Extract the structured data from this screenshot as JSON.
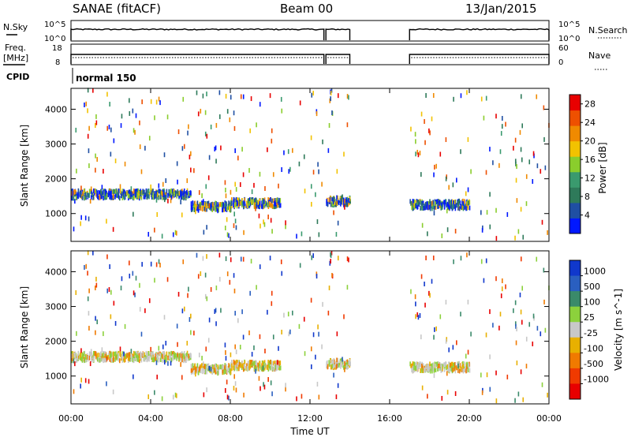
{
  "header": {
    "station": "SANAE (fitACF)",
    "beam": "Beam 00",
    "date": "13/Jan/2015"
  },
  "noise_panel": {
    "left_label": "N.Sky",
    "right_label": "N.Search",
    "left_ticks": [
      "10^5",
      "10^0"
    ],
    "right_ticks": [
      "10^5",
      "10^0"
    ]
  },
  "freq_panel": {
    "left_label_1": "Freq.",
    "left_label_2": "[MHz]",
    "left_ticks": [
      "18",
      "8"
    ],
    "right_ticks": [
      "60",
      "0"
    ],
    "right_label": "Nave"
  },
  "cpid": {
    "label": "CPID",
    "value": "normal 150"
  },
  "colors": {
    "power_scale": [
      "#0018ff",
      "#1f4fa3",
      "#2e7a5a",
      "#3a9a6e",
      "#8acd2c",
      "#f2c200",
      "#f08a00",
      "#ee5000",
      "#e80000"
    ],
    "velocity_scale": [
      "#1038cc",
      "#2a5fc0",
      "#3a8a6a",
      "#8cd13c",
      "#c8c8c8",
      "#e8b000",
      "#f07a00",
      "#f03a00",
      "#e80000"
    ]
  },
  "chart_data": [
    {
      "type": "heatmap",
      "title": "",
      "xlabel": "Time UT",
      "ylabel": "Slant Range [km]",
      "x_ticks": [
        "00:00",
        "04:00",
        "08:00",
        "12:00",
        "16:00",
        "20:00",
        "00:00"
      ],
      "y_ticks": [
        "1000",
        "2000",
        "3000",
        "4000"
      ],
      "xlim_hours": [
        0,
        24
      ],
      "ylim_km": [
        200,
        4600
      ],
      "colorbar": {
        "label": "Power [dB]",
        "ticks": [
          "4",
          "8",
          "12",
          "16",
          "20",
          "24",
          "28"
        ],
        "range": [
          0,
          30
        ]
      },
      "features": [
        {
          "t_start": 0.0,
          "t_end": 4.0,
          "range_km": 1550
        },
        {
          "t_start": 4.0,
          "t_end": 6.0,
          "range_km": 1550
        },
        {
          "t_start": 6.0,
          "t_end": 8.0,
          "range_km": 1200
        },
        {
          "t_start": 8.0,
          "t_end": 10.5,
          "range_km": 1300
        },
        {
          "t_start": 12.8,
          "t_end": 14.0,
          "range_km": 1350
        },
        {
          "t_start": 17.0,
          "t_end": 20.0,
          "range_km": 1250
        }
      ]
    },
    {
      "type": "heatmap",
      "title": "",
      "xlabel": "Time UT",
      "ylabel": "Slant Range [km]",
      "x_ticks": [
        "00:00",
        "04:00",
        "08:00",
        "12:00",
        "16:00",
        "20:00",
        "00:00"
      ],
      "y_ticks": [
        "1000",
        "2000",
        "3000",
        "4000"
      ],
      "xlim_hours": [
        0,
        24
      ],
      "ylim_km": [
        200,
        4600
      ],
      "colorbar": {
        "label": "Velocity [m s^-1]",
        "ticks": [
          "1000",
          "500",
          "100",
          "25",
          "-25",
          "-100",
          "-500",
          "-1000"
        ],
        "range": [
          -1000,
          1000
        ]
      }
    }
  ],
  "data_coverage": [
    {
      "t_start": 0.0,
      "t_end": 12.7
    },
    {
      "t_start": 12.8,
      "t_end": 14.0
    },
    {
      "t_start": 17.0,
      "t_end": 24.0
    }
  ]
}
